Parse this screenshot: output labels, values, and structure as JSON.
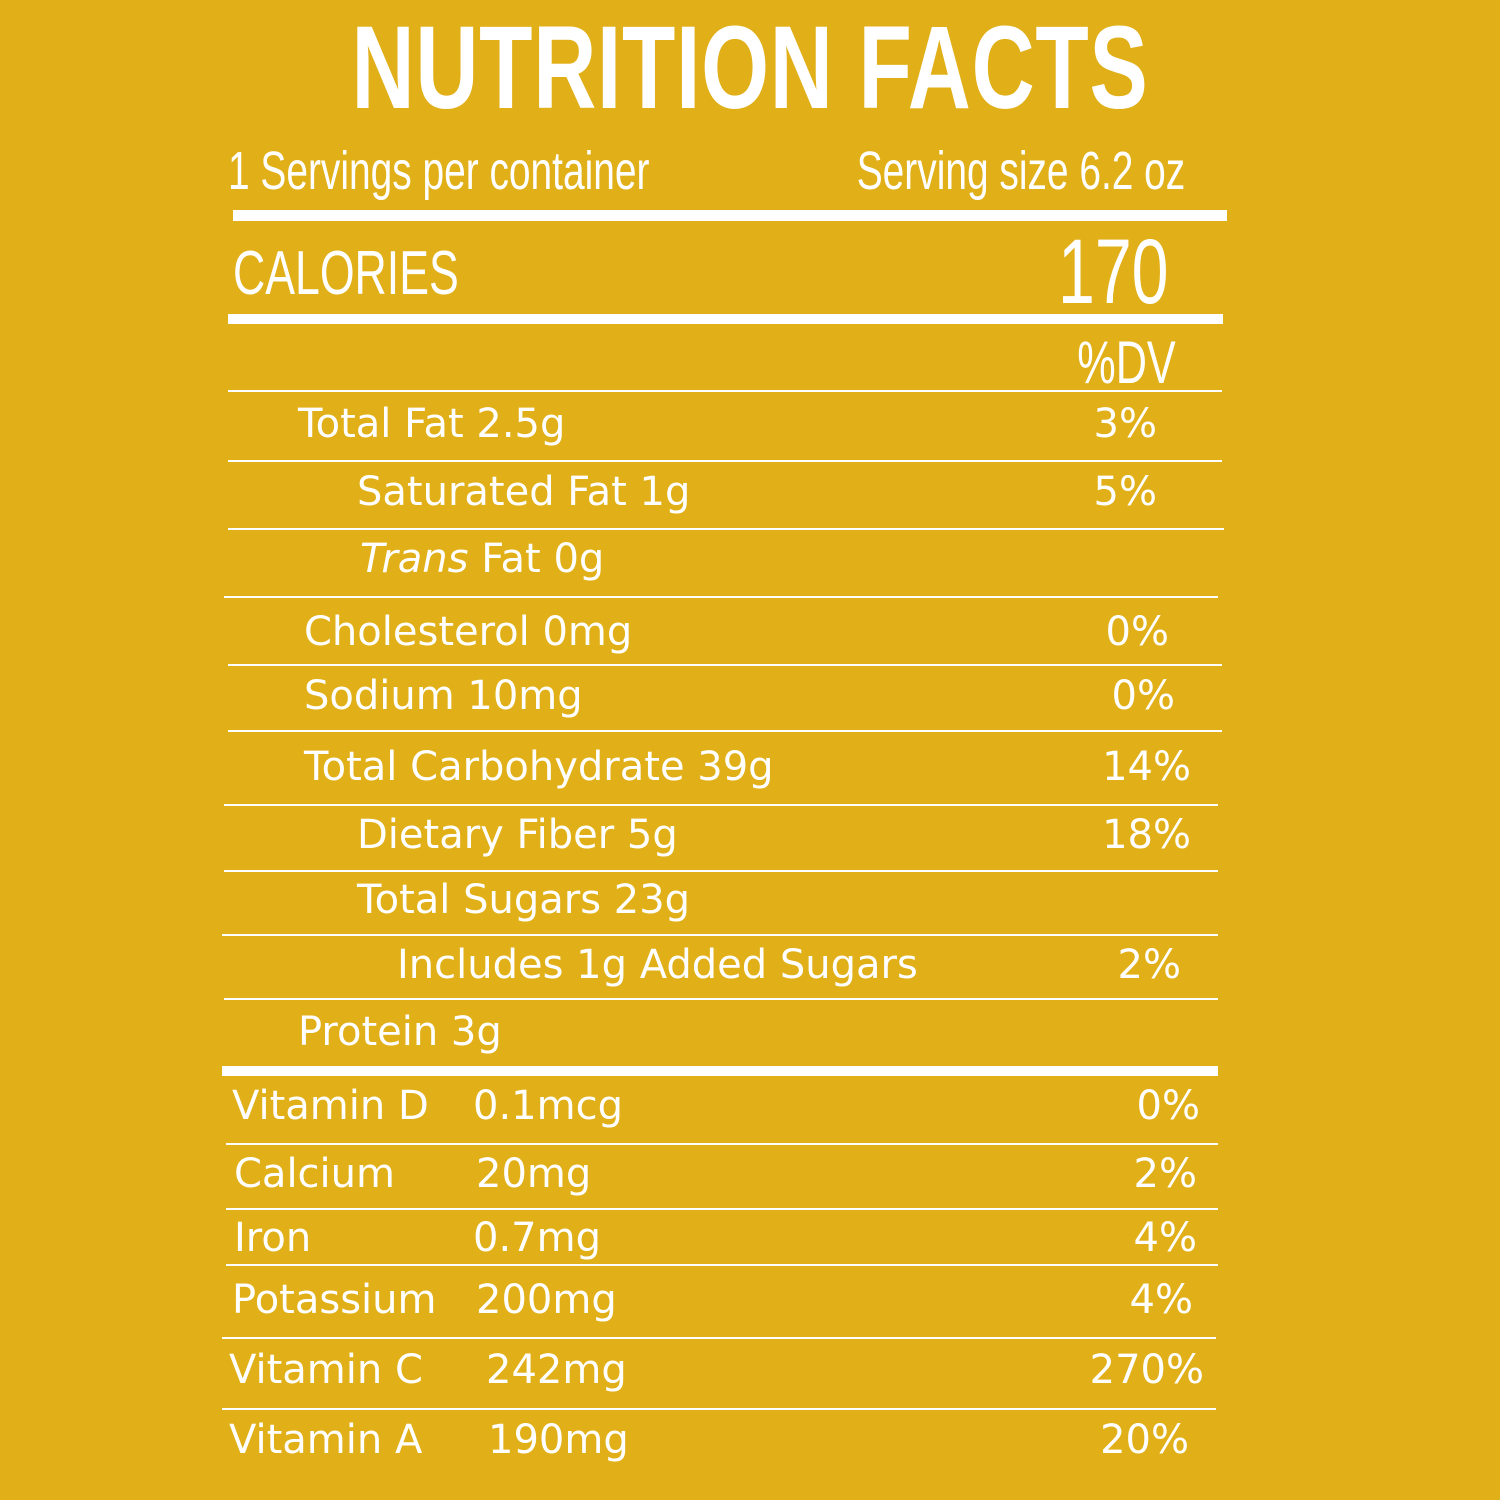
{
  "header": {
    "title": "NUTRITION FACTS",
    "servings_per_container": "1 Servings per container",
    "serving_size": "Serving size 6.2 oz"
  },
  "calories": {
    "label": "CALORIES",
    "value": "170"
  },
  "dv_header": "%DV",
  "nutrients": [
    {
      "label": "Total Fat 2.5g",
      "dv": "3%"
    },
    {
      "label": "Saturated Fat 1g",
      "dv": "5%"
    },
    {
      "label_italic": "Trans",
      "label_rest": " Fat 0g",
      "dv": ""
    },
    {
      "label": "Cholesterol 0mg",
      "dv": "0%"
    },
    {
      "label": "Sodium 10mg",
      "dv": "0%"
    },
    {
      "label": "Total Carbohydrate 39g",
      "dv": "14%"
    },
    {
      "label": "Dietary Fiber 5g",
      "dv": "18%"
    },
    {
      "label": "Total Sugars  23g",
      "dv": ""
    },
    {
      "label": "Includes 1g Added Sugars",
      "dv": "2%"
    },
    {
      "label": "Protein 3g",
      "dv": ""
    }
  ],
  "vitamins": [
    {
      "name": "Vitamin D",
      "amount": "0.1mcg",
      "dv": "0%"
    },
    {
      "name": "Calcium",
      "amount": "20mg",
      "dv": "2%"
    },
    {
      "name": "Iron",
      "amount": "0.7mg",
      "dv": "4%"
    },
    {
      "name": "Potassium",
      "amount": "200mg",
      "dv": "4%"
    },
    {
      "name": "Vitamin C",
      "amount": "242mg",
      "dv": "270%"
    },
    {
      "name": "Vitamin A",
      "amount": "190mg",
      "dv": "20%"
    }
  ]
}
